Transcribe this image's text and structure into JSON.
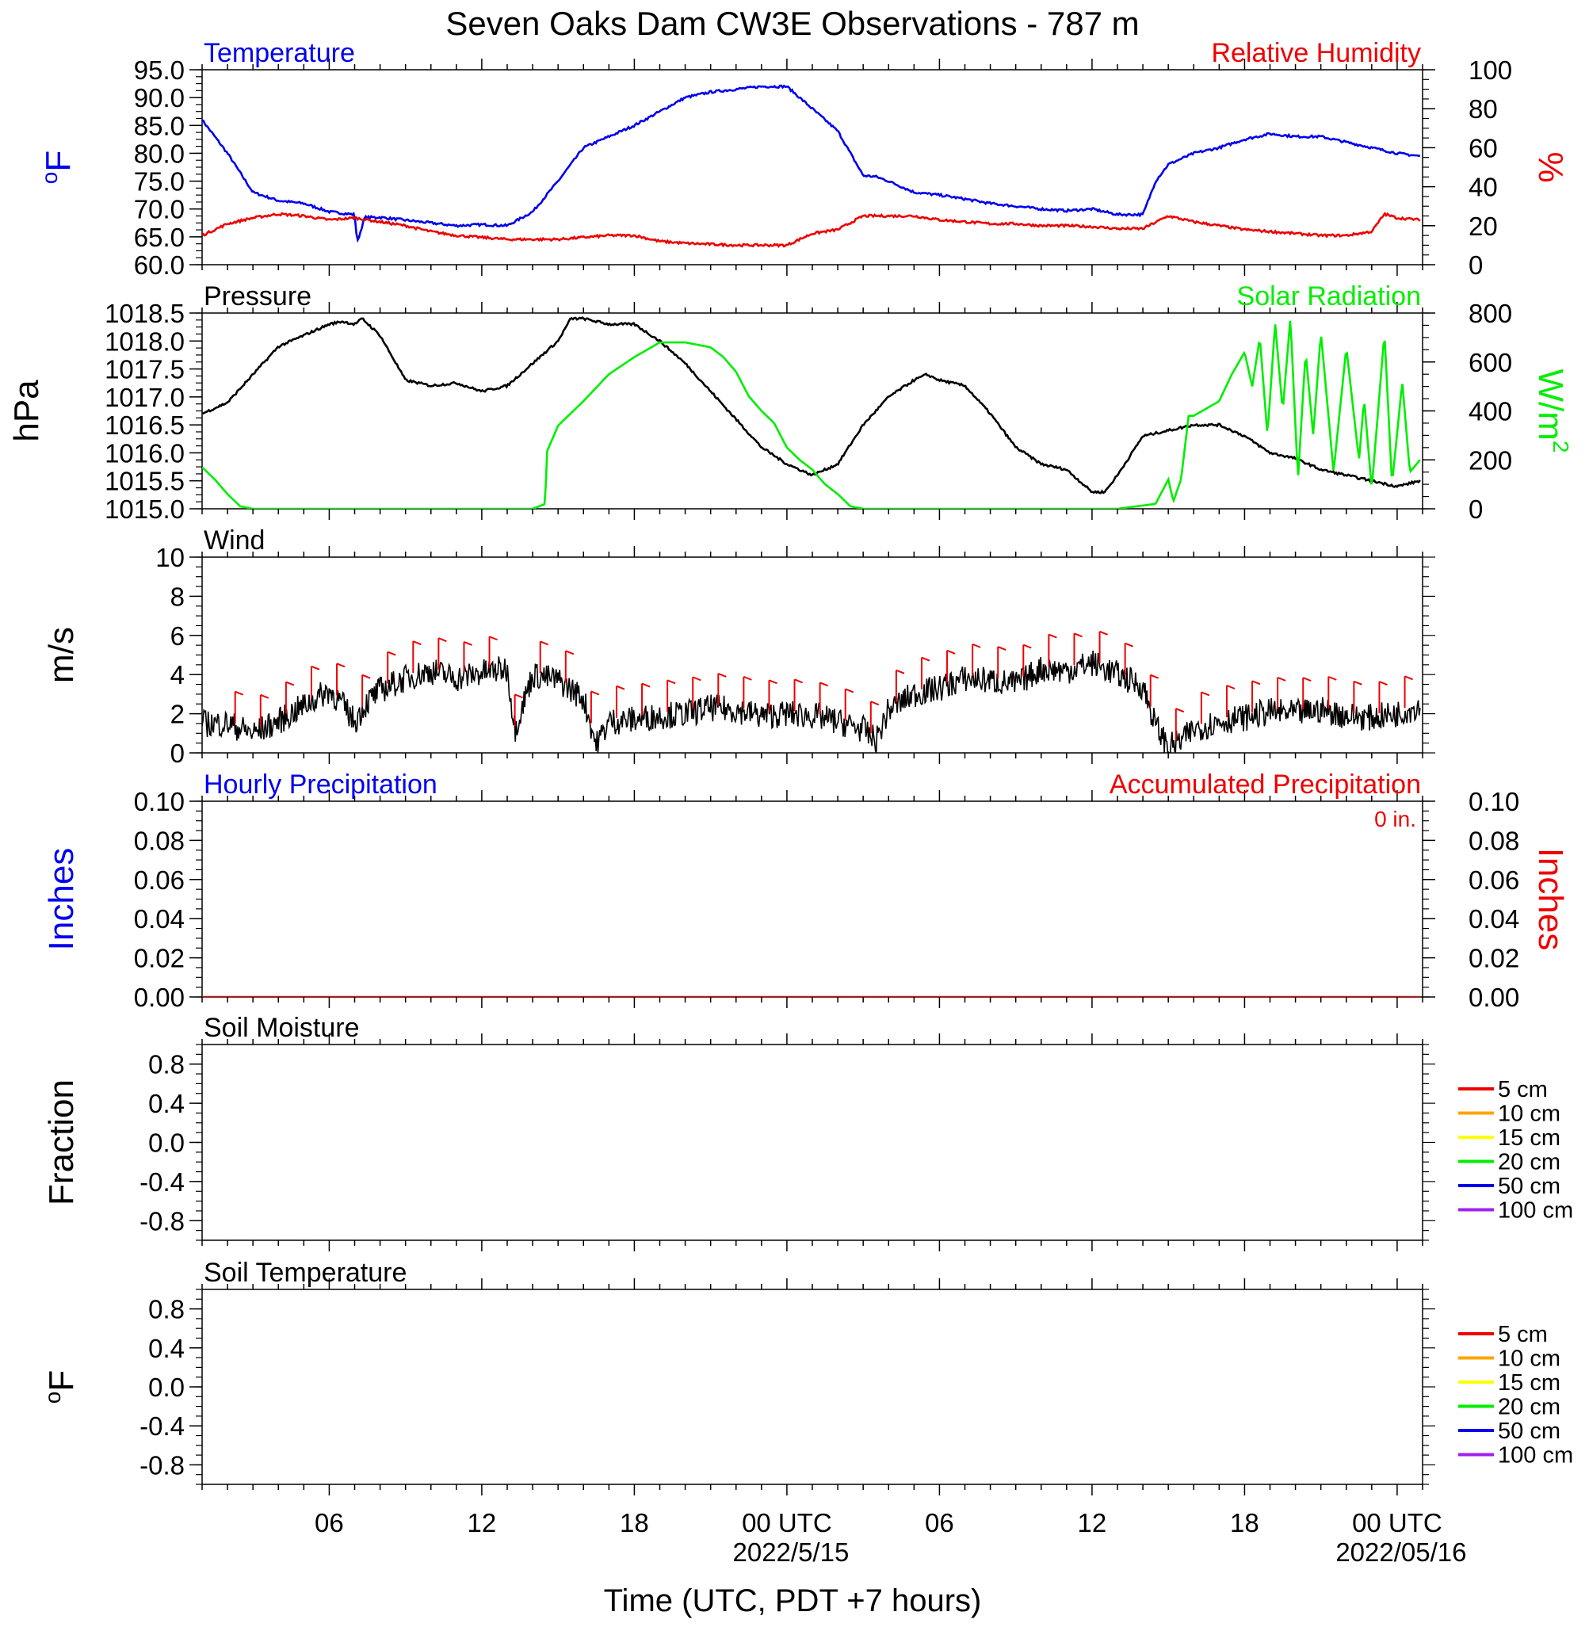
{
  "title": "Seven Oaks Dam CW3E Observations - 787 m",
  "x_axis": {
    "label": "Time (UTC, PDT +7 hours)",
    "ticks": [
      {
        "hour": 6,
        "label": "06",
        "date": ""
      },
      {
        "hour": 12,
        "label": "12",
        "date": ""
      },
      {
        "hour": 18,
        "label": "18",
        "date": ""
      },
      {
        "hour": 24,
        "label": "00 UTC",
        "date": "2022/5/15"
      },
      {
        "hour": 30,
        "label": "06",
        "date": ""
      },
      {
        "hour": 36,
        "label": "12",
        "date": ""
      },
      {
        "hour": 42,
        "label": "18",
        "date": ""
      },
      {
        "hour": 48,
        "label": "00 UTC",
        "date": "2022/05/16"
      }
    ],
    "range_hours": [
      1,
      49
    ]
  },
  "chart_data": [
    {
      "id": "temp_rh",
      "type": "line",
      "left_title": "Temperature",
      "right_title": "Relative Humidity",
      "ylabel_left": "°F",
      "ylabel_right": "%",
      "ylim_left": [
        60,
        95
      ],
      "ylim_right": [
        0,
        100
      ],
      "yticks_left": [
        "60.0",
        "65.0",
        "70.0",
        "75.0",
        "80.0",
        "85.0",
        "90.0",
        "95.0"
      ],
      "yticks_right": [
        "0",
        "20",
        "40",
        "60",
        "80",
        "100"
      ],
      "series": [
        {
          "axis": "left",
          "color": "#0000ee",
          "x": [
            1,
            2,
            3,
            4,
            5,
            6,
            7,
            7.1,
            7.4,
            8,
            9,
            10,
            11,
            12,
            13,
            14,
            15,
            16,
            17,
            18,
            19,
            20,
            21,
            22,
            23,
            24,
            25,
            26,
            27,
            27.5,
            28,
            29,
            30,
            31,
            32,
            33,
            34,
            35,
            36,
            37,
            38,
            38.5,
            39,
            40,
            41,
            42,
            43,
            44,
            45,
            46,
            47,
            48,
            48.9
          ],
          "y": [
            86,
            80,
            73,
            71.5,
            71,
            69.5,
            69,
            64,
            68.5,
            68.5,
            68,
            67.5,
            67,
            67.2,
            67,
            69.5,
            75,
            81,
            83,
            85,
            87.5,
            90,
            91,
            91.5,
            92,
            92,
            88,
            84,
            76,
            75.8,
            75,
            73,
            72.5,
            71.8,
            71,
            70.5,
            70,
            69.7,
            70,
            69,
            69,
            75,
            78,
            80,
            81,
            82.5,
            83.5,
            83,
            83,
            82,
            81,
            80,
            79.5
          ]
        },
        {
          "axis": "right",
          "color": "#ee0000",
          "x": [
            1,
            2,
            3,
            4,
            5,
            6,
            7,
            8,
            9,
            10,
            11,
            12,
            13,
            14,
            15,
            16,
            17,
            18,
            19,
            20,
            21,
            22,
            23,
            24,
            25,
            26,
            27,
            28,
            29,
            30,
            31,
            32,
            33,
            34,
            35,
            36,
            37,
            38,
            39,
            40,
            41,
            42,
            43,
            44,
            45,
            46,
            47,
            47.5,
            48,
            48.9
          ],
          "y": [
            15,
            21,
            24,
            26,
            25,
            23,
            24,
            22,
            20,
            17,
            15,
            14,
            13,
            13,
            13,
            14,
            15,
            15,
            12,
            11,
            10.5,
            10,
            10,
            10,
            16,
            18,
            25,
            25,
            25,
            23,
            22,
            21,
            21,
            20,
            20,
            19.5,
            18.5,
            18.5,
            25,
            22,
            20,
            18,
            17,
            16,
            15,
            15,
            17,
            26,
            24,
            23
          ]
        }
      ]
    },
    {
      "id": "pres_solar",
      "type": "line",
      "left_title": "Pressure",
      "right_title": "Solar Radiation",
      "ylabel_left": "hPa",
      "ylabel_right": "W/m",
      "ylabel_right_sup": "2",
      "ylim_left": [
        1015.0,
        1018.5
      ],
      "ylim_right": [
        0,
        800
      ],
      "yticks_left": [
        "1015.0",
        "1015.5",
        "1016.0",
        "1016.5",
        "1017.0",
        "1017.5",
        "1018.0",
        "1018.5"
      ],
      "yticks_right": [
        "0",
        "200",
        "400",
        "600",
        "800"
      ],
      "series": [
        {
          "axis": "left",
          "color": "#000000",
          "x": [
            1,
            2,
            3,
            4,
            5,
            6,
            6.5,
            7,
            7.3,
            8,
            9,
            10,
            11,
            12,
            13,
            14,
            15,
            15.5,
            16,
            17,
            18,
            19,
            20,
            21,
            22,
            23,
            24,
            25,
            26,
            27,
            28,
            29,
            29.5,
            30,
            31,
            32,
            33,
            34,
            35,
            36,
            36.5,
            37,
            38,
            39,
            40,
            41,
            42,
            43,
            44,
            45,
            46,
            47,
            48,
            48.9
          ],
          "y": [
            1016.7,
            1016.9,
            1017.4,
            1017.9,
            1018.1,
            1018.3,
            1018.35,
            1018.3,
            1018.4,
            1018.1,
            1017.3,
            1017.2,
            1017.25,
            1017.1,
            1017.2,
            1017.6,
            1018.0,
            1018.4,
            1018.4,
            1018.3,
            1018.3,
            1018.0,
            1017.6,
            1017.1,
            1016.6,
            1016.1,
            1015.8,
            1015.6,
            1015.8,
            1016.5,
            1017.0,
            1017.3,
            1017.4,
            1017.3,
            1017.2,
            1016.7,
            1016.1,
            1015.8,
            1015.7,
            1015.3,
            1015.3,
            1015.6,
            1016.3,
            1016.4,
            1016.5,
            1016.5,
            1016.3,
            1016.0,
            1015.9,
            1015.7,
            1015.6,
            1015.5,
            1015.4,
            1015.5
          ]
        },
        {
          "axis": "right",
          "color": "#00ee00",
          "x": [
            1,
            1.5,
            2,
            2.5,
            3,
            4,
            8,
            12,
            14,
            14.5,
            14.55,
            15,
            16,
            17,
            18,
            19,
            20,
            21,
            21.5,
            22,
            22.5,
            23,
            23.5,
            24,
            24.5,
            25,
            25.5,
            26,
            26.5,
            27,
            32,
            37,
            38.5,
            39,
            39.2,
            39.5,
            39.8,
            40,
            41,
            41.5,
            42,
            42.3,
            42.6,
            42.9,
            43.2,
            43.5,
            43.8,
            44.1,
            44.4,
            44.7,
            45,
            45.5,
            46,
            46.5,
            46.7,
            47,
            47.5,
            47.8,
            48.2,
            48.5,
            48.9
          ],
          "y": [
            170,
            120,
            60,
            10,
            0,
            0,
            0,
            0,
            0,
            20,
            230,
            340,
            440,
            550,
            620,
            680,
            680,
            660,
            620,
            560,
            460,
            400,
            350,
            250,
            200,
            160,
            100,
            60,
            10,
            0,
            0,
            0,
            20,
            120,
            30,
            120,
            380,
            380,
            440,
            550,
            640,
            500,
            700,
            300,
            760,
            400,
            780,
            120,
            640,
            300,
            720,
            150,
            660,
            200,
            450,
            80,
            720,
            100,
            520,
            150,
            200
          ]
        }
      ]
    },
    {
      "id": "wind",
      "type": "line",
      "left_title": "Wind",
      "ylabel_left": "m/s",
      "ylim_left": [
        0,
        10
      ],
      "yticks_left": [
        "0",
        "2",
        "4",
        "6",
        "8",
        "10"
      ],
      "series": [
        {
          "axis": "left",
          "color": "#000000",
          "x": [
            1,
            2,
            3,
            4,
            5,
            6,
            6.5,
            7,
            7.5,
            8,
            9,
            10,
            11,
            12,
            13,
            13.3,
            14,
            15,
            16,
            16.5,
            17,
            18,
            19,
            20,
            21,
            22,
            23,
            24,
            25,
            26,
            27,
            27.5,
            28,
            29,
            30,
            31,
            32,
            33,
            34,
            35,
            36,
            37,
            38,
            38.5,
            39,
            39.5,
            40,
            41,
            42,
            43,
            44,
            45,
            46,
            47,
            48,
            48.9
          ],
          "y": [
            1.5,
            1.5,
            1.0,
            1.6,
            2.4,
            3.2,
            2.5,
            1.6,
            2.6,
            3.2,
            3.8,
            4.2,
            3.8,
            4.1,
            4.3,
            1.2,
            4.0,
            3.7,
            2.8,
            0.4,
            1.6,
            1.7,
            1.9,
            2.0,
            2.3,
            2.2,
            1.9,
            2.0,
            1.9,
            1.6,
            1.2,
            0.6,
            2.2,
            3.0,
            3.3,
            3.8,
            3.7,
            3.5,
            4.3,
            4.2,
            4.6,
            4.0,
            3.4,
            1.4,
            0.3,
            0.6,
            1.2,
            1.6,
            1.8,
            2.1,
            2.0,
            2.2,
            1.9,
            1.8,
            2.0,
            2.4
          ]
        }
      ],
      "barb_times": [
        2.3,
        3.3,
        4.3,
        5.3,
        6.3,
        7.3,
        8.3,
        9.3,
        10.3,
        11.3,
        12.3,
        13.3,
        14.3,
        15.3,
        16.3,
        17.3,
        18.3,
        19.3,
        20.3,
        21.3,
        22.3,
        23.3,
        24.3,
        25.3,
        26.3,
        27.3,
        28.3,
        29.3,
        30.3,
        31.3,
        32.3,
        33.3,
        34.3,
        35.3,
        36.3,
        37.3,
        38.3,
        39.3,
        40.3,
        41.3,
        42.3,
        43.3,
        44.3,
        45.3,
        46.3,
        47.3,
        48.3
      ],
      "barb_color": "#ee0000"
    },
    {
      "id": "precip",
      "type": "line",
      "left_title": "Hourly Precipitation",
      "right_title": "Accumulated Precipitation",
      "total_label": "0 in.",
      "ylabel_left": "Inches",
      "ylabel_right": "Inches",
      "ylim_left": [
        0,
        0.1
      ],
      "ylim_right": [
        0,
        0.1
      ],
      "yticks_left": [
        "0.00",
        "0.02",
        "0.04",
        "0.06",
        "0.08",
        "0.10"
      ],
      "yticks_right": [
        "0.00",
        "0.02",
        "0.04",
        "0.06",
        "0.08",
        "0.10"
      ],
      "series": [
        {
          "axis": "left",
          "color": "#ee0000",
          "x": [
            1,
            48.9
          ],
          "y": [
            0,
            0
          ]
        }
      ]
    },
    {
      "id": "soil_moisture",
      "type": "line",
      "left_title": "Soil Moisture",
      "ylabel_left": "Fraction",
      "ylim_left": [
        -1,
        1
      ],
      "yticks_left": [
        "-0.8",
        "-0.4",
        "0.0",
        "0.4",
        "0.8"
      ],
      "legend": [
        {
          "label": "5 cm",
          "color": "#ee0000"
        },
        {
          "label": "10 cm",
          "color": "#ffa500"
        },
        {
          "label": "15 cm",
          "color": "#ffff00"
        },
        {
          "label": "20 cm",
          "color": "#00ee00"
        },
        {
          "label": "50 cm",
          "color": "#0000ee"
        },
        {
          "label": "100 cm",
          "color": "#a020f0"
        }
      ],
      "series": []
    },
    {
      "id": "soil_temp",
      "type": "line",
      "left_title": "Soil Temperature",
      "ylabel_left": "°F",
      "ylim_left": [
        -1,
        1
      ],
      "yticks_left": [
        "-0.8",
        "-0.4",
        "0.0",
        "0.4",
        "0.8"
      ],
      "legend": [
        {
          "label": "5 cm",
          "color": "#ee0000"
        },
        {
          "label": "10 cm",
          "color": "#ffa500"
        },
        {
          "label": "15 cm",
          "color": "#ffff00"
        },
        {
          "label": "20 cm",
          "color": "#00ee00"
        },
        {
          "label": "50 cm",
          "color": "#0000ee"
        },
        {
          "label": "100 cm",
          "color": "#a020f0"
        }
      ],
      "series": []
    }
  ]
}
